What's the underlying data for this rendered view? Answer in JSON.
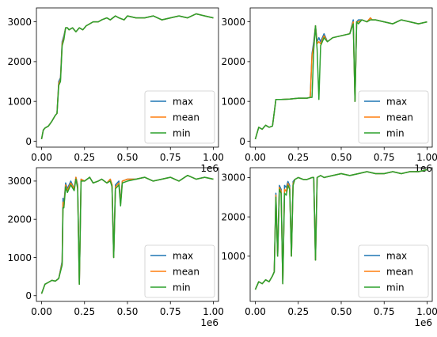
{
  "chart_data": [
    {
      "type": "line",
      "xlim": [
        -0.03,
        1.03
      ],
      "ylim": [
        -150,
        3350
      ],
      "xticks": [
        0.0,
        0.25,
        0.5,
        0.75,
        1.0
      ],
      "xtick_labels": [
        "0.00",
        "0.25",
        "0.50",
        "0.75",
        "1.00"
      ],
      "x_offset_label": "1e6",
      "yticks": [
        0,
        1000,
        2000,
        3000
      ],
      "ytick_labels": [
        "0",
        "1000",
        "2000",
        "3000"
      ],
      "legend": "lower-right",
      "series": [
        {
          "name": "max",
          "color": "#1f77b4"
        },
        {
          "name": "mean",
          "color": "#ff7f0e"
        },
        {
          "name": "min",
          "color": "#2ca02c"
        }
      ],
      "x": [
        0.0,
        0.01,
        0.02,
        0.04,
        0.06,
        0.08,
        0.09,
        0.1,
        0.11,
        0.12,
        0.13,
        0.14,
        0.15,
        0.16,
        0.18,
        0.2,
        0.22,
        0.24,
        0.26,
        0.28,
        0.3,
        0.33,
        0.35,
        0.38,
        0.4,
        0.43,
        0.45,
        0.48,
        0.5,
        0.55,
        0.6,
        0.65,
        0.7,
        0.75,
        0.8,
        0.85,
        0.9,
        0.95,
        1.0
      ],
      "max": [
        50,
        280,
        330,
        380,
        500,
        650,
        700,
        1500,
        1600,
        2500,
        2650,
        2850,
        2850,
        2800,
        2850,
        2750,
        2850,
        2800,
        2900,
        2950,
        3000,
        3000,
        3050,
        3100,
        3050,
        3150,
        3100,
        3050,
        3150,
        3100,
        3100,
        3150,
        3050,
        3100,
        3150,
        3100,
        3200,
        3150,
        3100
      ],
      "mean": [
        50,
        280,
        330,
        380,
        500,
        650,
        700,
        1450,
        1550,
        2450,
        2600,
        2850,
        2850,
        2800,
        2850,
        2750,
        2850,
        2800,
        2900,
        2950,
        3000,
        3000,
        3050,
        3100,
        3050,
        3150,
        3100,
        3050,
        3150,
        3100,
        3100,
        3150,
        3050,
        3100,
        3150,
        3100,
        3200,
        3150,
        3100
      ],
      "min": [
        50,
        280,
        330,
        380,
        500,
        650,
        700,
        1400,
        1500,
        2400,
        2550,
        2850,
        2850,
        2800,
        2850,
        2750,
        2850,
        2800,
        2900,
        2950,
        3000,
        3000,
        3050,
        3100,
        3050,
        3150,
        3100,
        3050,
        3150,
        3100,
        3100,
        3150,
        3050,
        3100,
        3150,
        3100,
        3200,
        3150,
        3100
      ]
    },
    {
      "type": "line",
      "xlim": [
        -0.03,
        1.03
      ],
      "ylim": [
        -150,
        3350
      ],
      "xticks": [
        0.0,
        0.25,
        0.5,
        0.75,
        1.0
      ],
      "xtick_labels": [
        "0.00",
        "0.25",
        "0.50",
        "0.75",
        "1.00"
      ],
      "x_offset_label": "1e6",
      "yticks": [
        0,
        1000,
        2000,
        3000
      ],
      "ytick_labels": [
        "0",
        "1000",
        "2000",
        "3000"
      ],
      "legend": "lower-right",
      "series": [
        {
          "name": "max",
          "color": "#1f77b4"
        },
        {
          "name": "mean",
          "color": "#ff7f0e"
        },
        {
          "name": "min",
          "color": "#2ca02c"
        }
      ],
      "x": [
        0.0,
        0.02,
        0.04,
        0.06,
        0.08,
        0.1,
        0.12,
        0.15,
        0.2,
        0.25,
        0.3,
        0.32,
        0.33,
        0.34,
        0.35,
        0.36,
        0.37,
        0.38,
        0.4,
        0.42,
        0.45,
        0.5,
        0.55,
        0.57,
        0.58,
        0.59,
        0.6,
        0.62,
        0.65,
        0.67,
        0.68,
        0.7,
        0.75,
        0.8,
        0.85,
        0.9,
        0.95,
        1.0
      ],
      "max": [
        50,
        350,
        300,
        400,
        350,
        380,
        1050,
        1050,
        1060,
        1080,
        1080,
        1100,
        2200,
        2500,
        2900,
        2500,
        2600,
        2500,
        2700,
        2500,
        2600,
        2650,
        2700,
        3050,
        1000,
        3000,
        3050,
        3050,
        3000,
        3100,
        3050,
        3050,
        3000,
        2950,
        3050,
        3000,
        2950,
        3000
      ],
      "mean": [
        50,
        350,
        300,
        400,
        350,
        380,
        1050,
        1050,
        1060,
        1080,
        1080,
        1100,
        2150,
        2400,
        2900,
        2450,
        2500,
        2450,
        2650,
        2500,
        2600,
        2650,
        2700,
        3000,
        1000,
        3000,
        3000,
        3050,
        3000,
        3100,
        3050,
        3050,
        3000,
        2950,
        3050,
        3000,
        2950,
        3000
      ],
      "min": [
        50,
        350,
        300,
        400,
        350,
        380,
        1050,
        1050,
        1060,
        1080,
        1080,
        1100,
        1100,
        2300,
        2900,
        2300,
        1050,
        2400,
        2600,
        2500,
        2600,
        2650,
        2700,
        2950,
        1000,
        3000,
        2950,
        3050,
        3000,
        3050,
        3050,
        3050,
        3000,
        2950,
        3050,
        3000,
        2950,
        3000
      ]
    },
    {
      "type": "line",
      "xlim": [
        -0.03,
        1.03
      ],
      "ylim": [
        -150,
        3350
      ],
      "xticks": [
        0.0,
        0.25,
        0.5,
        0.75,
        1.0
      ],
      "xtick_labels": [
        "0.00",
        "0.25",
        "0.50",
        "0.75",
        "1.00"
      ],
      "x_offset_label": "1e6",
      "yticks": [
        0,
        1000,
        2000,
        3000
      ],
      "ytick_labels": [
        "0",
        "1000",
        "2000",
        "3000"
      ],
      "legend": "lower-right",
      "series": [
        {
          "name": "max",
          "color": "#1f77b4"
        },
        {
          "name": "mean",
          "color": "#ff7f0e"
        },
        {
          "name": "min",
          "color": "#2ca02c"
        }
      ],
      "x": [
        0.0,
        0.02,
        0.04,
        0.06,
        0.08,
        0.1,
        0.12,
        0.125,
        0.13,
        0.14,
        0.15,
        0.17,
        0.19,
        0.2,
        0.21,
        0.22,
        0.23,
        0.25,
        0.28,
        0.3,
        0.33,
        0.35,
        0.38,
        0.4,
        0.41,
        0.42,
        0.43,
        0.45,
        0.46,
        0.47,
        0.5,
        0.55,
        0.6,
        0.65,
        0.7,
        0.75,
        0.8,
        0.85,
        0.9,
        0.95,
        1.0
      ],
      "max": [
        50,
        300,
        350,
        400,
        380,
        450,
        900,
        2550,
        2400,
        2950,
        2800,
        3000,
        2800,
        3100,
        2900,
        300,
        3050,
        3000,
        3100,
        2950,
        3000,
        3050,
        2950,
        3050,
        2900,
        1000,
        2900,
        3000,
        2450,
        3000,
        3050,
        3050,
        3100,
        3000,
        3050,
        3100,
        3000,
        3150,
        3050,
        3100,
        3050
      ],
      "mean": [
        50,
        300,
        350,
        400,
        380,
        450,
        850,
        2450,
        2350,
        2900,
        2750,
        2950,
        2800,
        3100,
        2850,
        300,
        3050,
        3000,
        3100,
        2950,
        3000,
        3050,
        2950,
        3050,
        2900,
        1000,
        2850,
        2950,
        2400,
        3000,
        3050,
        3050,
        3100,
        3000,
        3050,
        3100,
        3000,
        3150,
        3050,
        3100,
        3050
      ],
      "min": [
        50,
        300,
        350,
        400,
        380,
        450,
        800,
        2300,
        2300,
        2850,
        2700,
        2900,
        2750,
        3050,
        2800,
        300,
        3000,
        3000,
        3100,
        2950,
        3000,
        3050,
        2950,
        3000,
        2850,
        1000,
        2800,
        2900,
        2350,
        2950,
        3000,
        3050,
        3100,
        3000,
        3050,
        3100,
        3000,
        3150,
        3050,
        3100,
        3050
      ]
    },
    {
      "type": "line",
      "xlim": [
        -0.03,
        1.03
      ],
      "ylim": [
        -150,
        3250
      ],
      "xticks": [
        0.0,
        0.25,
        0.5,
        0.75,
        1.0
      ],
      "xtick_labels": [
        "0.00",
        "0.25",
        "0.50",
        "0.75",
        "1.00"
      ],
      "x_offset_label": "1e6",
      "yticks": [
        1000,
        2000,
        3000
      ],
      "ytick_labels": [
        "1000",
        "2000",
        "3000"
      ],
      "legend": "lower-right",
      "series": [
        {
          "name": "max",
          "color": "#1f77b4"
        },
        {
          "name": "mean",
          "color": "#ff7f0e"
        },
        {
          "name": "min",
          "color": "#2ca02c"
        }
      ],
      "x": [
        0.0,
        0.02,
        0.04,
        0.06,
        0.08,
        0.1,
        0.11,
        0.12,
        0.13,
        0.14,
        0.15,
        0.16,
        0.17,
        0.18,
        0.19,
        0.2,
        0.21,
        0.22,
        0.23,
        0.25,
        0.28,
        0.3,
        0.33,
        0.34,
        0.35,
        0.36,
        0.38,
        0.4,
        0.45,
        0.5,
        0.55,
        0.6,
        0.65,
        0.7,
        0.75,
        0.8,
        0.85,
        0.9,
        0.95,
        1.0
      ],
      "max": [
        150,
        350,
        300,
        400,
        350,
        500,
        600,
        2600,
        1000,
        2800,
        2700,
        300,
        2800,
        2750,
        2900,
        2800,
        1000,
        2900,
        2950,
        3000,
        2950,
        2950,
        3000,
        3000,
        900,
        3000,
        3050,
        3000,
        3050,
        3100,
        3050,
        3100,
        3150,
        3100,
        3100,
        3150,
        3100,
        3150,
        3150,
        3200
      ],
      "mean": [
        150,
        350,
        300,
        400,
        350,
        500,
        600,
        2550,
        1000,
        2750,
        2650,
        300,
        2700,
        2650,
        2850,
        2750,
        1000,
        2850,
        2950,
        3000,
        2950,
        2950,
        3000,
        3000,
        900,
        3000,
        3050,
        3000,
        3050,
        3100,
        3050,
        3100,
        3150,
        3100,
        3100,
        3150,
        3100,
        3150,
        3150,
        3200
      ],
      "min": [
        150,
        350,
        300,
        400,
        350,
        500,
        600,
        2500,
        1000,
        2700,
        2600,
        300,
        2600,
        2550,
        2800,
        2700,
        1000,
        2800,
        2950,
        3000,
        2950,
        2950,
        3000,
        3000,
        900,
        3000,
        3050,
        3000,
        3050,
        3100,
        3050,
        3100,
        3150,
        3100,
        3100,
        3150,
        3100,
        3150,
        3150,
        3200
      ]
    }
  ]
}
